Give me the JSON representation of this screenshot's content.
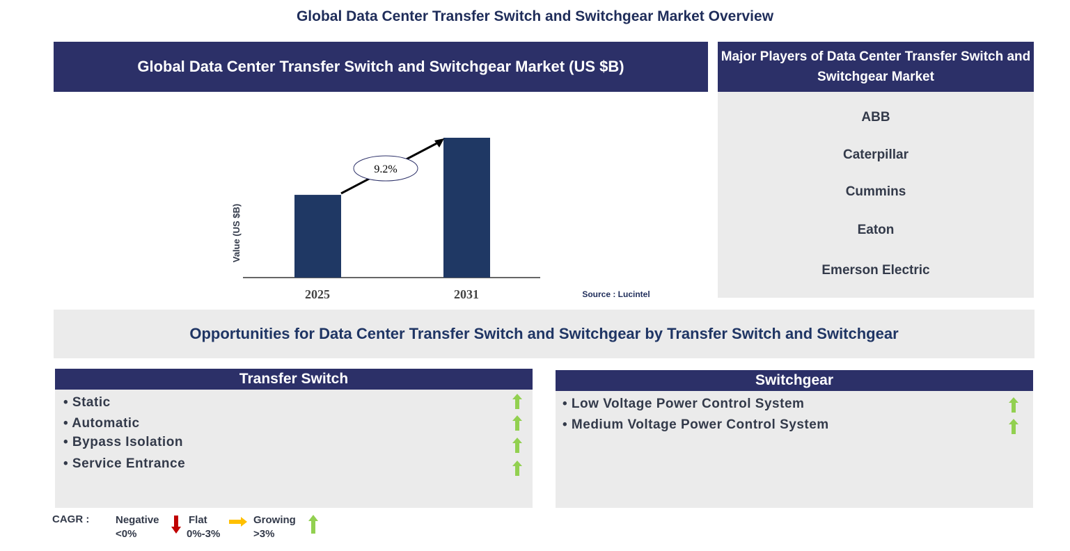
{
  "page_title": "Global Data Center Transfer Switch and Switchgear Market Overview",
  "market_header": "Global Data Center Transfer Switch and Switchgear Market (US $B)",
  "chart_data": {
    "type": "bar",
    "categories": [
      "2025",
      "2031"
    ],
    "values_relative": [
      1.0,
      1.69
    ],
    "ylabel": "Value (US $B)",
    "cagr_label": "9.2%",
    "bar_color": "#1f3864",
    "source": "Source : Lucintel"
  },
  "players": {
    "header": "Major Players of Data Center Transfer Switch and Switchgear Market",
    "items": [
      "ABB",
      "Caterpillar",
      "Cummins",
      "Eaton",
      "Emerson Electric"
    ]
  },
  "opportunities_title": "Opportunities for Data Center Transfer Switch and Switchgear by Transfer Switch and Switchgear",
  "segments": [
    {
      "title": "Transfer Switch",
      "items": [
        {
          "label": "• Static",
          "trend": "growing"
        },
        {
          "label": "• Automatic",
          "trend": "growing"
        },
        {
          "label": "• Bypass Isolation",
          "trend": "growing"
        },
        {
          "label": "• Service Entrance",
          "trend": "growing"
        }
      ]
    },
    {
      "title": "Switchgear",
      "items": [
        {
          "label": "• Low Voltage Power Control System",
          "trend": "growing"
        },
        {
          "label": "• Medium Voltage Power Control System",
          "trend": "growing"
        }
      ]
    }
  ],
  "legend": {
    "label": "CAGR :",
    "negative": "Negative",
    "negative_range": "<0%",
    "flat": "Flat",
    "flat_range": "0%-3%",
    "growing": "Growing",
    "growing_range": ">3%",
    "colors": {
      "negative": "#c00000",
      "flat": "#ffc000",
      "growing": "#92d050"
    }
  }
}
